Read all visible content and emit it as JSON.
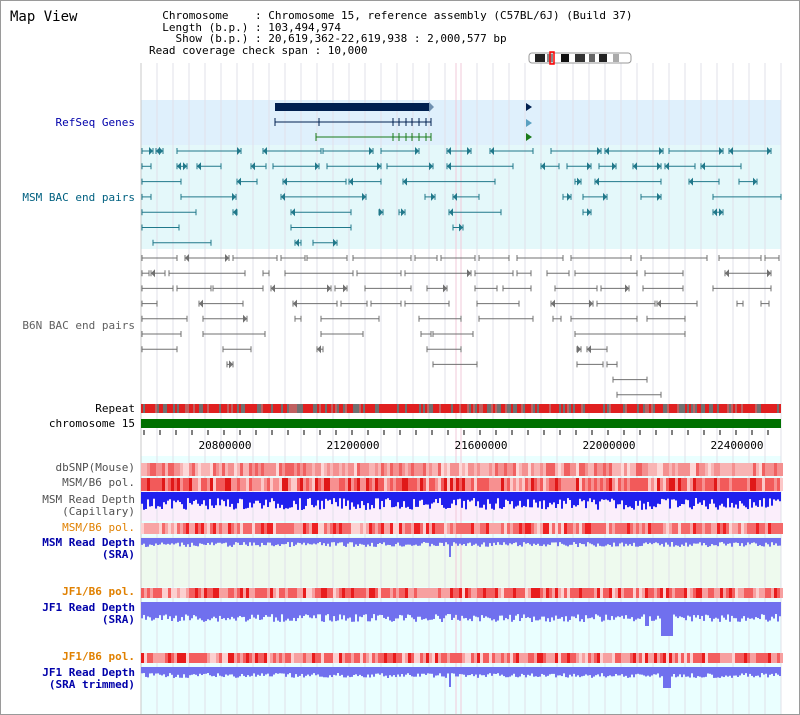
{
  "page": {
    "title": "Map View",
    "info_lines": [
      "  Chromosome    : Chromosome 15, reference assembly (C57BL/6J) (Build 37)",
      "  Length (b.p.) : 103,494,974",
      "    Show (b.p.) : 20,619,362-22,619,938 : 2,000,577 bp",
      "Read coverage check span : 10,000"
    ]
  },
  "tracks": {
    "refseq": "RefSeq Genes",
    "msm_bac": "MSM BAC end pairs",
    "b6n_bac": "B6N BAC end pairs",
    "repeat": "Repeat",
    "chromosome": "chromosome 15",
    "dbsnp": "dbSNP(Mouse)",
    "msm_b6_pol": "MSM/B6 pol.",
    "msm_read_depth_cap_1": "MSM Read Depth",
    "msm_read_depth_cap_2": "(Capillary)",
    "msm_b6_pol_2": "MSM/B6 pol.",
    "msm_read_depth_sra_1": "MSM Read Depth",
    "msm_read_depth_sra_2": "(SRA)",
    "jf1_b6_pol": "JF1/B6 pol.",
    "jf1_read_depth_1": "JF1 Read Depth",
    "jf1_read_depth_2": "(SRA)",
    "jf1_b6_pol_2": "JF1/B6 pol.",
    "jf1_trim_1": "JF1 Read Depth",
    "jf1_trim_2": "(SRA trimmed)"
  },
  "axis": {
    "ticks": [
      "20800000",
      "21200000",
      "21600000",
      "22000000",
      "22400000"
    ]
  },
  "colors": {
    "label_blue": "#0000aa",
    "label_teal": "#006080",
    "label_grey": "#606060",
    "label_orange": "#e08000",
    "gene_navy": "#002050",
    "gene_teal": "#20788a",
    "gene_green": "#1a7a1a",
    "repeat_red": "#e02020",
    "depth_blue": "#2020ee",
    "depth_lavender": "#7070ee",
    "chrom_green": "#007000"
  }
}
